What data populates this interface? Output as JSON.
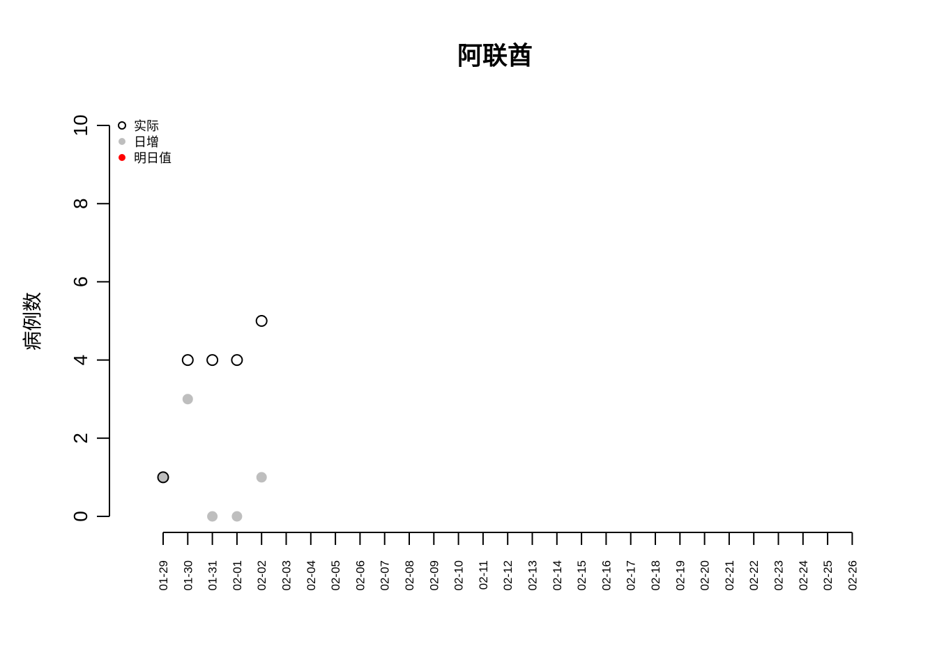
{
  "chart_data": {
    "type": "scatter",
    "title": "阿联酋",
    "xlabel": "",
    "ylabel": "病例数",
    "ylim": [
      0,
      10
    ],
    "yticks": [
      0,
      2,
      4,
      6,
      8,
      10
    ],
    "categories": [
      "01-29",
      "01-30",
      "01-31",
      "02-01",
      "02-02",
      "02-03",
      "02-04",
      "02-05",
      "02-06",
      "02-07",
      "02-08",
      "02-09",
      "02-10",
      "02-11",
      "02-12",
      "02-13",
      "02-14",
      "02-15",
      "02-16",
      "02-17",
      "02-18",
      "02-19",
      "02-20",
      "02-21",
      "02-22",
      "02-23",
      "02-24",
      "02-25",
      "02-26"
    ],
    "series": [
      {
        "name": "实际",
        "style": "open-circle",
        "color": "#000000",
        "points": [
          [
            "01-29",
            1
          ],
          [
            "01-30",
            4
          ],
          [
            "01-31",
            4
          ],
          [
            "02-01",
            4
          ],
          [
            "02-02",
            5
          ]
        ]
      },
      {
        "name": "日增",
        "style": "filled-circle",
        "color": "#bebebe",
        "points": [
          [
            "01-29",
            1
          ],
          [
            "01-30",
            3
          ],
          [
            "01-31",
            0
          ],
          [
            "02-01",
            0
          ],
          [
            "02-02",
            1
          ]
        ]
      },
      {
        "name": "明日值",
        "style": "filled-circle",
        "color": "#ff0000",
        "points": []
      }
    ],
    "legend_position": "top-left",
    "grid": false
  }
}
